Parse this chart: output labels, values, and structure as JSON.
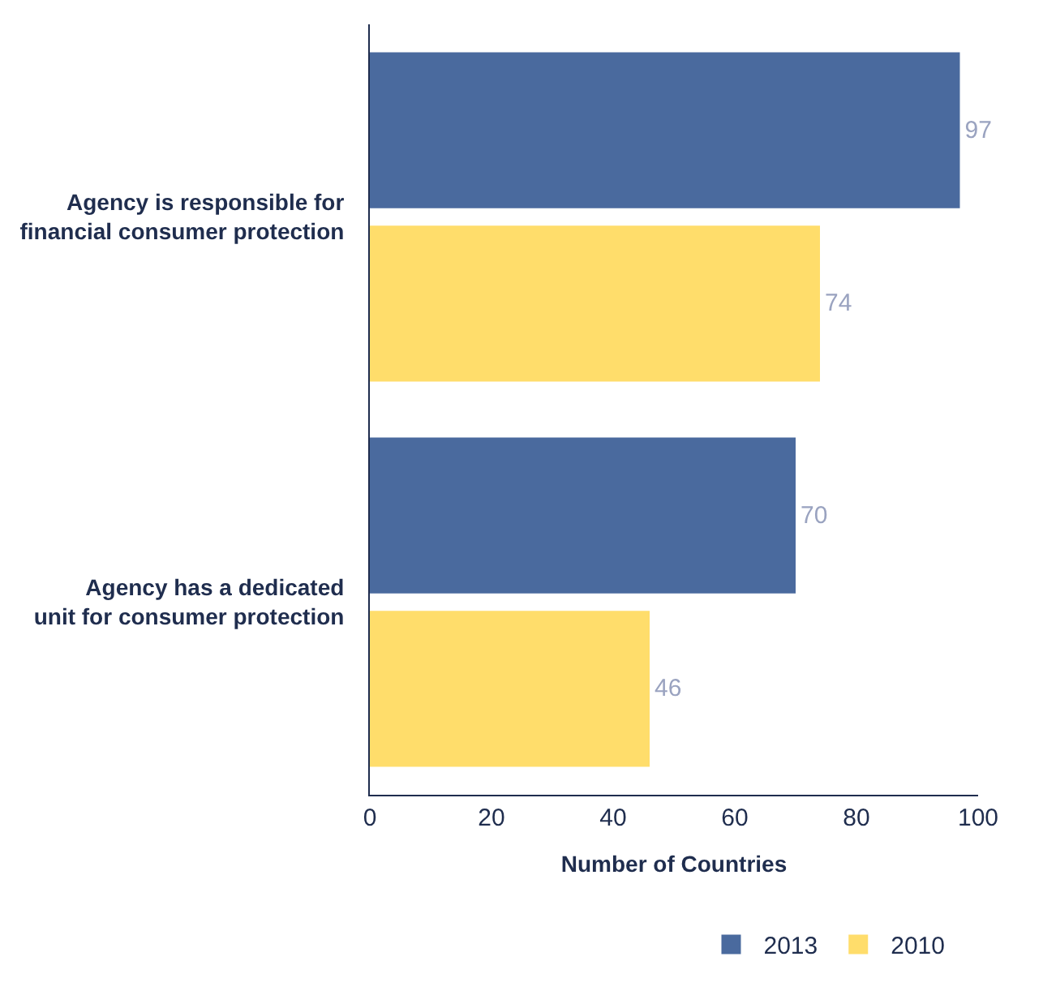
{
  "chart_data": {
    "type": "bar",
    "orientation": "horizontal",
    "xlabel": "Number of Countries",
    "categories": [
      "Agency is responsible for\nfinancial consumer protection",
      "Agency has a dedicated\nunit for consumer protection"
    ],
    "series": [
      {
        "name": "2013",
        "color": "#4a6a9e",
        "values": [
          97,
          70
        ]
      },
      {
        "name": "2010",
        "color": "#ffdd6b",
        "values": [
          74,
          46
        ]
      }
    ],
    "xlim": [
      0,
      100
    ],
    "xticks": [
      0,
      20,
      40,
      60,
      80,
      100
    ],
    "data_labels": true,
    "legend": "bottom"
  }
}
